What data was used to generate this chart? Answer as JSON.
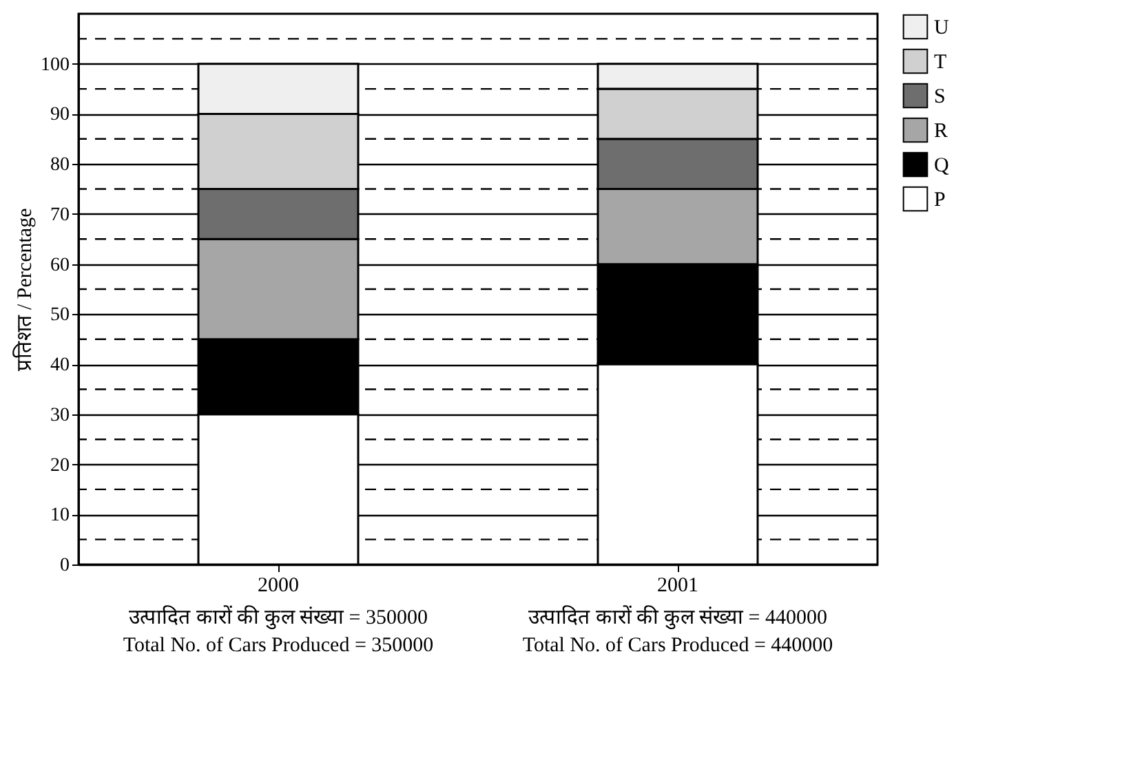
{
  "chart_data": {
    "type": "bar",
    "stacked": true,
    "ylabel": "प्रतिशत / Percentage",
    "categories": [
      "2000",
      "2001"
    ],
    "series": [
      {
        "name": "P",
        "color": "#ffffff",
        "values": [
          30,
          40
        ]
      },
      {
        "name": "Q",
        "color": "#000000",
        "values": [
          15,
          20
        ]
      },
      {
        "name": "R",
        "color": "#a6a6a6",
        "values": [
          20,
          15
        ]
      },
      {
        "name": "S",
        "color": "#6e6e6e",
        "values": [
          10,
          10
        ]
      },
      {
        "name": "T",
        "color": "#d0d0d0",
        "values": [
          15,
          10
        ]
      },
      {
        "name": "U",
        "color": "#efefef",
        "values": [
          10,
          5
        ]
      }
    ],
    "ylim": [
      0,
      110
    ],
    "yticks": [
      0,
      10,
      20,
      30,
      40,
      50,
      60,
      70,
      80,
      90,
      100
    ],
    "grid": "y",
    "legend": "top right",
    "annotations": [
      "उत्पादित कारों की कुल संख्या = 350000",
      "Total No. of Cars Produced = 350000",
      "उत्पादित कारों की कुल संख्या = 440000",
      "Total No. of Cars Produced = 440000"
    ]
  }
}
